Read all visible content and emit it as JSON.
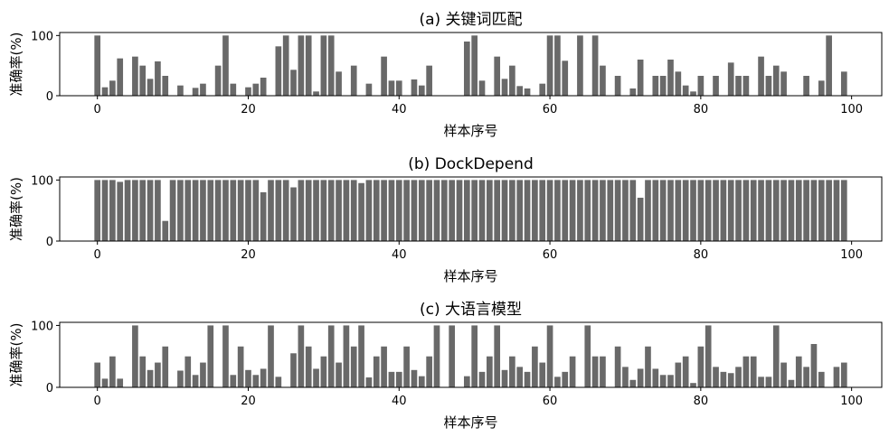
{
  "chart_data": [
    {
      "type": "bar",
      "title": "(a) 关键词匹配",
      "xlabel": "样本序号",
      "ylabel": "准确率(%)",
      "xlim": [
        -5,
        104
      ],
      "ylim": [
        0,
        105
      ],
      "xticks": [
        0,
        20,
        40,
        60,
        80,
        100
      ],
      "yticks": [
        0,
        100
      ],
      "bar_color": "#696969",
      "x": [
        0,
        1,
        2,
        3,
        4,
        5,
        6,
        7,
        8,
        9,
        10,
        11,
        12,
        13,
        14,
        15,
        16,
        17,
        18,
        19,
        20,
        21,
        22,
        23,
        24,
        25,
        26,
        27,
        28,
        29,
        30,
        31,
        32,
        33,
        34,
        35,
        36,
        37,
        38,
        39,
        40,
        41,
        42,
        43,
        44,
        45,
        46,
        47,
        48,
        49,
        50,
        51,
        52,
        53,
        54,
        55,
        56,
        57,
        58,
        59,
        60,
        61,
        62,
        63,
        64,
        65,
        66,
        67,
        68,
        69,
        70,
        71,
        72,
        73,
        74,
        75,
        76,
        77,
        78,
        79,
        80,
        81,
        82,
        83,
        84,
        85,
        86,
        87,
        88,
        89,
        90,
        91,
        92,
        93,
        94,
        95,
        96,
        97,
        98,
        99
      ],
      "values": [
        100,
        14,
        25,
        62,
        0,
        65,
        50,
        28,
        57,
        33,
        0,
        17,
        0,
        13,
        20,
        0,
        50,
        100,
        20,
        0,
        14,
        20,
        30,
        0,
        82,
        100,
        43,
        100,
        100,
        7,
        100,
        100,
        40,
        0,
        50,
        0,
        20,
        0,
        65,
        25,
        25,
        0,
        27,
        17,
        50,
        0,
        0,
        0,
        0,
        90,
        100,
        25,
        0,
        65,
        28,
        50,
        16,
        12,
        0,
        20,
        100,
        100,
        58,
        0,
        100,
        0,
        100,
        50,
        0,
        33,
        0,
        12,
        60,
        0,
        33,
        33,
        60,
        40,
        17,
        7,
        33,
        0,
        33,
        0,
        55,
        33,
        33,
        0,
        65,
        33,
        50,
        40,
        0,
        0,
        33,
        0,
        25,
        100,
        0,
        40
      ]
    },
    {
      "type": "bar",
      "title": "(b) DockDepend",
      "xlabel": "样本序号",
      "ylabel": "准确率(%)",
      "xlim": [
        -5,
        104
      ],
      "ylim": [
        0,
        105
      ],
      "xticks": [
        0,
        20,
        40,
        60,
        80,
        100
      ],
      "yticks": [
        0,
        100
      ],
      "bar_color": "#696969",
      "x": [
        0,
        1,
        2,
        3,
        4,
        5,
        6,
        7,
        8,
        9,
        10,
        11,
        12,
        13,
        14,
        15,
        16,
        17,
        18,
        19,
        20,
        21,
        22,
        23,
        24,
        25,
        26,
        27,
        28,
        29,
        30,
        31,
        32,
        33,
        34,
        35,
        36,
        37,
        38,
        39,
        40,
        41,
        42,
        43,
        44,
        45,
        46,
        47,
        48,
        49,
        50,
        51,
        52,
        53,
        54,
        55,
        56,
        57,
        58,
        59,
        60,
        61,
        62,
        63,
        64,
        65,
        66,
        67,
        68,
        69,
        70,
        71,
        72,
        73,
        74,
        75,
        76,
        77,
        78,
        79,
        80,
        81,
        82,
        83,
        84,
        85,
        86,
        87,
        88,
        89,
        90,
        91,
        92,
        93,
        94,
        95,
        96,
        97,
        98,
        99
      ],
      "values": [
        100,
        100,
        100,
        97,
        100,
        100,
        100,
        100,
        100,
        33,
        100,
        100,
        100,
        100,
        100,
        100,
        100,
        100,
        100,
        100,
        100,
        100,
        80,
        100,
        100,
        100,
        88,
        100,
        100,
        100,
        100,
        100,
        100,
        100,
        100,
        95,
        100,
        100,
        100,
        100,
        100,
        100,
        100,
        100,
        100,
        100,
        100,
        100,
        100,
        100,
        100,
        100,
        100,
        100,
        100,
        100,
        100,
        100,
        100,
        100,
        100,
        100,
        100,
        100,
        100,
        100,
        100,
        100,
        100,
        100,
        100,
        100,
        71,
        100,
        100,
        100,
        100,
        100,
        100,
        100,
        100,
        100,
        100,
        100,
        100,
        100,
        100,
        100,
        100,
        100,
        100,
        100,
        100,
        100,
        100,
        100,
        100,
        100,
        100,
        100
      ]
    },
    {
      "type": "bar",
      "title": "(c) 大语言模型",
      "xlabel": "样本序号",
      "ylabel": "准确率(%)",
      "xlim": [
        -5,
        104
      ],
      "ylim": [
        0,
        105
      ],
      "xticks": [
        0,
        20,
        40,
        60,
        80,
        100
      ],
      "yticks": [
        0,
        100
      ],
      "bar_color": "#696969",
      "x": [
        0,
        1,
        2,
        3,
        4,
        5,
        6,
        7,
        8,
        9,
        10,
        11,
        12,
        13,
        14,
        15,
        16,
        17,
        18,
        19,
        20,
        21,
        22,
        23,
        24,
        25,
        26,
        27,
        28,
        29,
        30,
        31,
        32,
        33,
        34,
        35,
        36,
        37,
        38,
        39,
        40,
        41,
        42,
        43,
        44,
        45,
        46,
        47,
        48,
        49,
        50,
        51,
        52,
        53,
        54,
        55,
        56,
        57,
        58,
        59,
        60,
        61,
        62,
        63,
        64,
        65,
        66,
        67,
        68,
        69,
        70,
        71,
        72,
        73,
        74,
        75,
        76,
        77,
        78,
        79,
        80,
        81,
        82,
        83,
        84,
        85,
        86,
        87,
        88,
        89,
        90,
        91,
        92,
        93,
        94,
        95,
        96,
        97,
        98,
        99
      ],
      "values": [
        40,
        14,
        50,
        14,
        0,
        100,
        50,
        28,
        40,
        66,
        0,
        27,
        50,
        20,
        40,
        100,
        0,
        100,
        20,
        66,
        28,
        20,
        30,
        100,
        17,
        0,
        55,
        100,
        66,
        30,
        50,
        100,
        40,
        100,
        66,
        100,
        16,
        50,
        66,
        25,
        25,
        66,
        28,
        18,
        50,
        100,
        0,
        100,
        0,
        18,
        100,
        25,
        50,
        100,
        28,
        50,
        33,
        25,
        66,
        40,
        100,
        17,
        25,
        50,
        0,
        100,
        50,
        50,
        0,
        66,
        33,
        12,
        30,
        66,
        30,
        20,
        20,
        40,
        50,
        7,
        66,
        100,
        33,
        25,
        23,
        33,
        50,
        50,
        17,
        17,
        100,
        40,
        12,
        50,
        33,
        70,
        25,
        0,
        33,
        40
      ]
    }
  ]
}
